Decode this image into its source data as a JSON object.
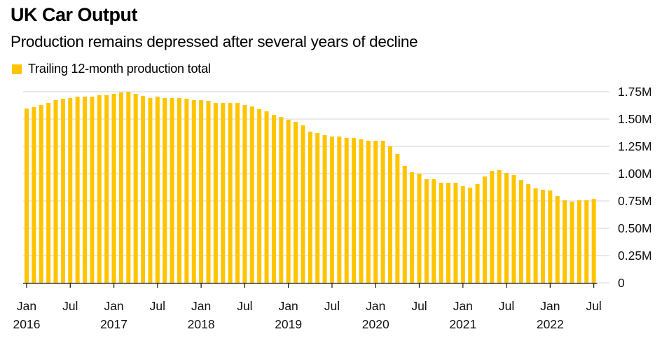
{
  "header": {
    "title": "UK Car Output",
    "subtitle": "Production remains depressed after several years of decline"
  },
  "colors": {
    "bar": "#FFC400",
    "grid": "#DEDEDE",
    "axis": "#222222"
  },
  "chart_data": {
    "type": "bar",
    "title": "UK Car Output",
    "subtitle": "Production remains depressed after several years of decline",
    "xlabel": "",
    "ylabel": "",
    "unit": "millions of cars",
    "legend": {
      "position": "top-left",
      "entries": [
        "Trailing 12-month production total"
      ]
    },
    "grid": true,
    "y_axis_side": "right",
    "ylim": [
      0,
      1.75
    ],
    "yticks": [
      {
        "value": 1.75,
        "label": "1.75M"
      },
      {
        "value": 1.5,
        "label": "1.50M"
      },
      {
        "value": 1.25,
        "label": "1.25M"
      },
      {
        "value": 1.0,
        "label": "1.00M"
      },
      {
        "value": 0.75,
        "label": "0.75M"
      },
      {
        "value": 0.5,
        "label": "0.50M"
      },
      {
        "value": 0.25,
        "label": "0.25M"
      },
      {
        "value": 0,
        "label": "0"
      }
    ],
    "xticks": [
      {
        "index": 0,
        "month": "Jan",
        "year": "2016"
      },
      {
        "index": 6,
        "month": "Jul",
        "year": ""
      },
      {
        "index": 12,
        "month": "Jan",
        "year": "2017"
      },
      {
        "index": 18,
        "month": "Jul",
        "year": ""
      },
      {
        "index": 24,
        "month": "Jan",
        "year": "2018"
      },
      {
        "index": 30,
        "month": "Jul",
        "year": ""
      },
      {
        "index": 36,
        "month": "Jan",
        "year": "2019"
      },
      {
        "index": 42,
        "month": "Jul",
        "year": ""
      },
      {
        "index": 48,
        "month": "Jan",
        "year": "2020"
      },
      {
        "index": 54,
        "month": "Jul",
        "year": ""
      },
      {
        "index": 60,
        "month": "Jan",
        "year": "2021"
      },
      {
        "index": 66,
        "month": "Jul",
        "year": ""
      },
      {
        "index": 72,
        "month": "Jan",
        "year": "2022"
      },
      {
        "index": 78,
        "month": "Jul",
        "year": ""
      }
    ],
    "x_start": "2016-01",
    "x_end": "2022-07",
    "series": [
      {
        "name": "Trailing 12-month production total",
        "values": [
          1.596,
          1.609,
          1.628,
          1.647,
          1.673,
          1.686,
          1.692,
          1.705,
          1.705,
          1.705,
          1.718,
          1.718,
          1.731,
          1.744,
          1.75,
          1.731,
          1.712,
          1.692,
          1.705,
          1.692,
          1.692,
          1.692,
          1.686,
          1.673,
          1.673,
          1.667,
          1.647,
          1.647,
          1.647,
          1.647,
          1.628,
          1.615,
          1.59,
          1.571,
          1.538,
          1.519,
          1.494,
          1.474,
          1.442,
          1.385,
          1.372,
          1.353,
          1.34,
          1.34,
          1.327,
          1.327,
          1.314,
          1.301,
          1.301,
          1.301,
          1.25,
          1.179,
          1.071,
          1.013,
          1.0,
          0.949,
          0.949,
          0.917,
          0.917,
          0.917,
          0.885,
          0.872,
          0.904,
          0.974,
          1.026,
          1.032,
          1.006,
          0.987,
          0.942,
          0.904,
          0.865,
          0.853,
          0.846,
          0.795,
          0.756,
          0.744,
          0.756,
          0.756,
          0.769
        ]
      }
    ]
  }
}
